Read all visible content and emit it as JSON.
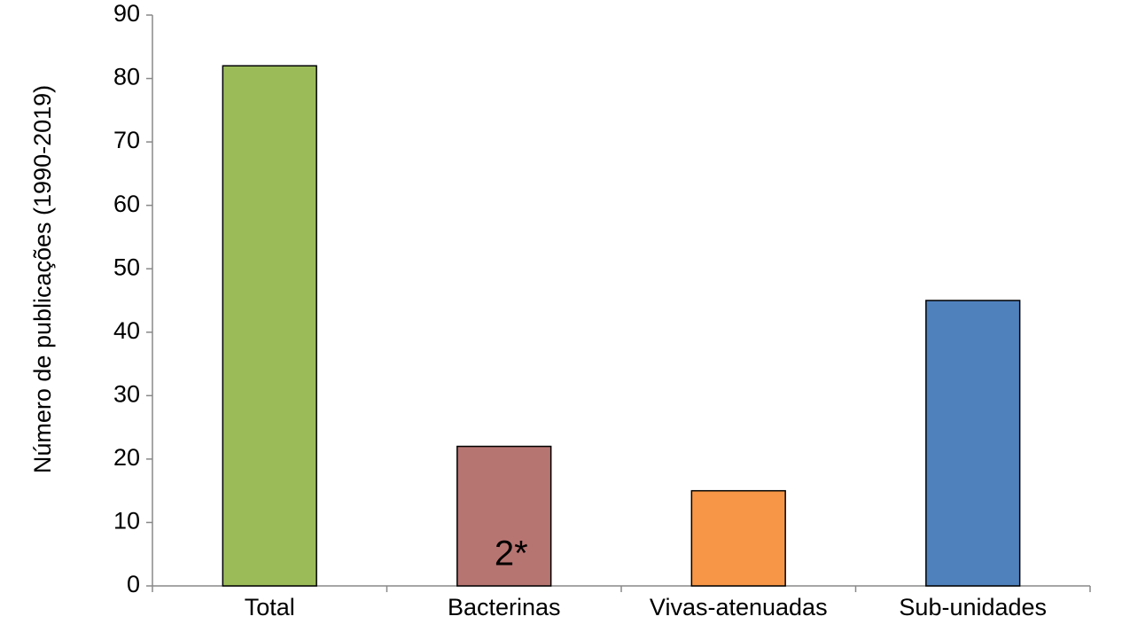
{
  "chart_data": {
    "type": "bar",
    "y_label": "Número de publicações (1990-2019)",
    "categories": [
      "Total",
      "Bacterinas",
      "Vivas-atenuadas",
      "Sub-unidades"
    ],
    "values": [
      82,
      22,
      15,
      45
    ],
    "colors": [
      "#9bbb59",
      "#b77572",
      "#f79646",
      "#4f81bd"
    ],
    "annotation": "2*",
    "ylim": [
      0,
      90
    ],
    "yticks": [
      0,
      10,
      20,
      30,
      40,
      50,
      60,
      70,
      80,
      90
    ],
    "grid": false
  }
}
